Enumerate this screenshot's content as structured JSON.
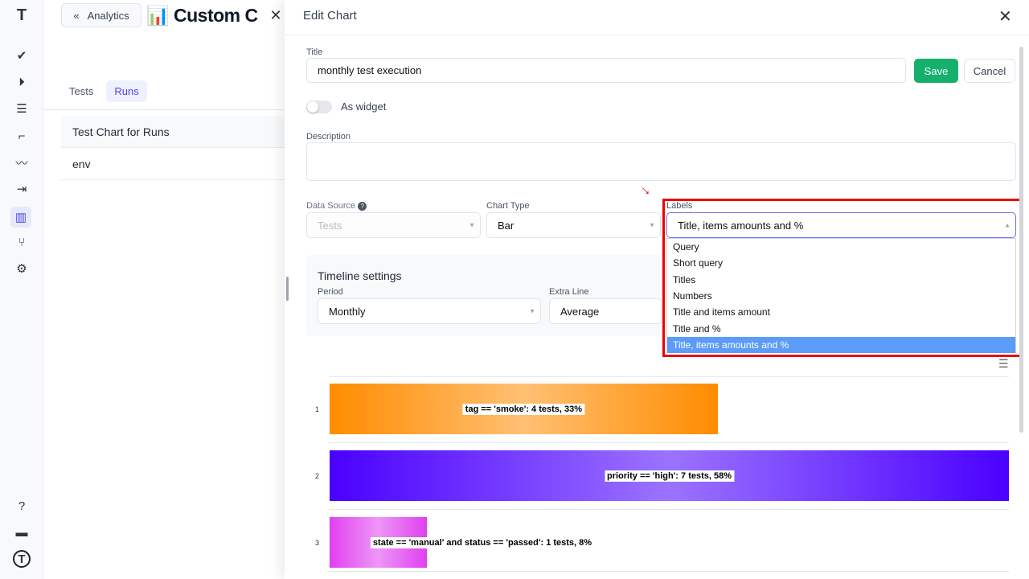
{
  "sidebar": {
    "items": [
      {
        "icon": "logo-icon",
        "glyph": "T"
      },
      {
        "icon": "check-icon",
        "glyph": "✔"
      },
      {
        "icon": "play-circle-icon",
        "glyph": "⏵"
      },
      {
        "icon": "checklist-icon",
        "glyph": "☰"
      },
      {
        "icon": "steps-icon",
        "glyph": "⌐"
      },
      {
        "icon": "pulse-icon",
        "glyph": "〰"
      },
      {
        "icon": "import-icon",
        "glyph": "⇥"
      },
      {
        "icon": "analytics-icon",
        "glyph": "▥"
      },
      {
        "icon": "branch-icon",
        "glyph": "⑂"
      },
      {
        "icon": "gear-icon",
        "glyph": "⚙"
      },
      {
        "icon": "help-icon",
        "glyph": "?"
      },
      {
        "icon": "folder-icon",
        "glyph": "▬"
      },
      {
        "icon": "profile-icon",
        "glyph": "T"
      }
    ]
  },
  "background": {
    "back_label": "Analytics",
    "title": "📊 Custom C",
    "tabs": [
      "Tests",
      "Runs"
    ],
    "active_tab": "Runs",
    "list": [
      "Test Chart for Runs",
      "env"
    ]
  },
  "modal": {
    "title": "Edit Chart",
    "title_label": "Title",
    "title_value": "monthly test execution",
    "save": "Save",
    "cancel": "Cancel",
    "widget_label": "As widget",
    "description_label": "Description",
    "description_value": "",
    "data_source_label": "Data Source",
    "data_source_value": "Tests",
    "chart_type_label": "Chart Type",
    "chart_type_value": "Bar",
    "labels_label": "Labels",
    "labels_value": "Title, items amounts and %",
    "labels_options": [
      "Query",
      "Short query",
      "Titles",
      "Numbers",
      "Title and items amount",
      "Title and %",
      "Title, items amounts and %"
    ],
    "timeline_title": "Timeline settings",
    "period_label": "Period",
    "period_value": "Monthly",
    "extra_line_label": "Extra Line",
    "extra_line_value": "Average"
  },
  "chart": {
    "type": "bar",
    "orientation": "horizontal",
    "categories": [
      "1",
      "2",
      "3"
    ],
    "values": [
      4,
      7,
      1
    ],
    "labels": [
      "tag == 'smoke': 4 tests, 33%",
      "priority == 'high': 7 tests, 58%",
      "state == 'manual' and status == 'passed': 1 tests, 8%"
    ],
    "colors": [
      "#ff8c00",
      "#4a00ff",
      "#e040f0"
    ],
    "xlim": [
      0,
      7
    ]
  },
  "colors": {
    "accent": "#4f46e5",
    "save": "#16b06d",
    "highlight": "#ee0000",
    "selected_option": "#5b9cf8"
  }
}
